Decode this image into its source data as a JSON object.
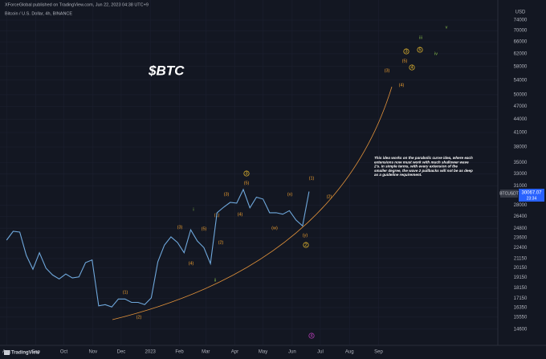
{
  "chart_data": {
    "type": "line",
    "header": "XForceGlobal published on TradingView.com, Jun 22, 2023 04:38 UTC+9",
    "symbol": "Bitcoin / U.S. Dollar, 4h, BINANCE",
    "title": "$BTC",
    "currency": "USD",
    "ticker": "BTCUSDT",
    "time_label": "23:34",
    "logo": "TradingView",
    "log_scale": true,
    "grid": true,
    "series": [
      {
        "name": "BTCUSDT",
        "color": "#6fa8dc",
        "values": [
          23300,
          24400,
          24300,
          21500,
          20000,
          21800,
          20100,
          19400,
          19000,
          19500,
          19100,
          19200,
          20700,
          21000,
          16500,
          16600,
          16400,
          17100,
          17100,
          16800,
          16800,
          16600,
          17200,
          20800,
          22700,
          23700,
          23000,
          21800,
          24600,
          23200,
          22400,
          20600,
          26900,
          27700,
          28400,
          28300,
          30400,
          27600,
          29200,
          28900,
          26900,
          26900,
          26700,
          27200,
          25900,
          25100,
          30067.07
        ]
      }
    ],
    "xlim": [
      -1,
      74.7
    ],
    "xticks": [
      {
        "value": 0,
        "label": "Aug"
      },
      {
        "value": 4.43,
        "label": "Sep"
      },
      {
        "value": 8.71,
        "label": "Oct"
      },
      {
        "value": 13.14,
        "label": "Nov"
      },
      {
        "value": 17.43,
        "label": "Dec"
      },
      {
        "value": 21.86,
        "label": "2023"
      },
      {
        "value": 26.29,
        "label": "Feb"
      },
      {
        "value": 30.29,
        "label": "Mar"
      },
      {
        "value": 34.71,
        "label": "Apr"
      },
      {
        "value": 39,
        "label": "May"
      },
      {
        "value": 43.43,
        "label": "Jun"
      },
      {
        "value": 47.71,
        "label": "Jul"
      },
      {
        "value": 52.14,
        "label": "Aug"
      },
      {
        "value": 56.57,
        "label": "Sep"
      }
    ],
    "ylim": [
      13520,
      79500
    ],
    "yticks": [
      74000,
      70000,
      66000,
      62000,
      58000,
      54000,
      50000,
      47000,
      44000,
      41000,
      38000,
      35000,
      33000,
      31000,
      28000,
      26400,
      24800,
      23600,
      22400,
      21150,
      20150,
      19150,
      18150,
      17150,
      16350,
      15550,
      14600
    ],
    "note": [
      "This idea works on the parabolic curve idea, where each",
      "extensions now must work with much shallower wave",
      "2's. In simple terms, with every extension of the",
      "smaller degree, the wave 2 pullbacks will not be as deep",
      "as a guideline requirement."
    ],
    "curve_color": "#e0913a",
    "wave_labels": [
      {
        "text": "(1)",
        "color": "#f0a030"
      },
      {
        "text": "(2)",
        "color": "#f0a030"
      },
      {
        "text": "i",
        "color": "#8bc34a"
      },
      {
        "text": "(3)",
        "color": "#f0a030"
      },
      {
        "text": "(4)",
        "color": "#f0a030"
      },
      {
        "text": "(5)",
        "color": "#f0a030"
      },
      {
        "text": "ii",
        "color": "#8bc34a"
      },
      {
        "text": "(1)",
        "color": "#f0a030"
      },
      {
        "text": "(2)",
        "color": "#f0a030"
      },
      {
        "text": "(3)",
        "color": "#f0a030"
      },
      {
        "text": "(4)",
        "color": "#f0a030"
      },
      {
        "text": "(5)",
        "color": "#f0a030"
      },
      {
        "text": "3",
        "color": "#f0c030",
        "circled": true
      },
      {
        "text": "(x)",
        "color": "#f0a030"
      },
      {
        "text": "(w)",
        "color": "#f0a030"
      },
      {
        "text": "(y)",
        "color": "#f0a030"
      },
      {
        "text": "(1)",
        "color": "#f0a030"
      },
      {
        "text": "(2)",
        "color": "#f0a030"
      },
      {
        "text": "2",
        "color": "#f0c030",
        "circled": true
      },
      {
        "text": "4",
        "color": "#c040c0",
        "circled": true
      },
      {
        "text": "(3)",
        "color": "#f0a030"
      },
      {
        "text": "(4)",
        "color": "#f0a030"
      },
      {
        "text": "3",
        "color": "#f0c030",
        "circled": true
      },
      {
        "text": "(5)",
        "color": "#f0a030"
      },
      {
        "text": "4",
        "color": "#f0c030",
        "circled": true
      },
      {
        "text": "5",
        "color": "#f0c030",
        "circled": true
      },
      {
        "text": "iii",
        "color": "#8bc34a"
      },
      {
        "text": "iv",
        "color": "#8bc34a"
      },
      {
        "text": "v",
        "color": "#8bc34a"
      }
    ]
  }
}
